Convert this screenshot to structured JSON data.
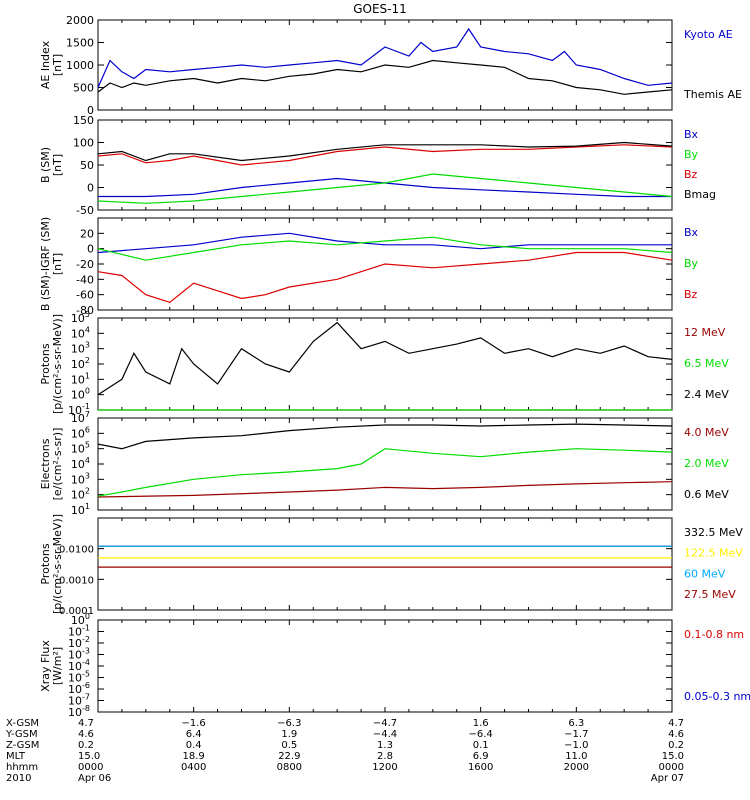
{
  "title": "GOES-11",
  "colors": {
    "black": "#000000",
    "blue": "#0000cc",
    "green": "#00dd00",
    "red": "#dd0000",
    "darkred": "#990000",
    "yellow": "#ffee00",
    "cyan": "#00aaff"
  },
  "chart_data": [
    {
      "type": "line",
      "panel": "ae",
      "ylabel": "AE Index",
      "yunit": "[nT]",
      "scale": "linear",
      "ylim": [
        0,
        2000
      ],
      "yticks": [
        0,
        500,
        1000,
        1500,
        2000
      ],
      "xlim_hours": [
        0,
        24
      ],
      "series": [
        {
          "name": "Kyoto AE",
          "color": "#0000cc",
          "x": [
            0,
            0.5,
            1,
            1.5,
            2,
            3,
            4,
            5,
            6,
            7,
            8,
            9,
            10,
            11,
            12,
            13,
            13.5,
            14,
            15,
            15.5,
            16,
            17,
            18,
            19,
            19.5,
            20,
            21,
            22,
            23,
            24
          ],
          "y": [
            500,
            1100,
            850,
            700,
            900,
            850,
            900,
            950,
            1000,
            950,
            1000,
            1050,
            1100,
            1000,
            1400,
            1200,
            1500,
            1300,
            1400,
            1800,
            1400,
            1300,
            1250,
            1100,
            1300,
            1000,
            900,
            700,
            550,
            600
          ]
        },
        {
          "name": "Themis AE",
          "color": "#000000",
          "x": [
            0,
            0.5,
            1,
            1.5,
            2,
            3,
            4,
            5,
            6,
            7,
            8,
            9,
            10,
            11,
            12,
            13,
            14,
            15,
            16,
            17,
            18,
            19,
            20,
            21,
            22,
            23,
            24
          ],
          "y": [
            400,
            600,
            500,
            600,
            550,
            650,
            700,
            600,
            700,
            650,
            750,
            800,
            900,
            850,
            1000,
            950,
            1100,
            1050,
            1000,
            950,
            700,
            650,
            500,
            450,
            350,
            400,
            450
          ]
        }
      ]
    },
    {
      "type": "line",
      "panel": "b_sm",
      "ylabel": "B (SM)",
      "yunit": "[nT]",
      "scale": "linear",
      "ylim": [
        -50,
        150
      ],
      "yticks": [
        -50,
        0,
        50,
        100,
        150
      ],
      "xlim_hours": [
        0,
        24
      ],
      "series": [
        {
          "name": "Bx",
          "color": "#0000cc",
          "x": [
            0,
            2,
            4,
            6,
            8,
            10,
            12,
            14,
            16,
            18,
            20,
            22,
            24
          ],
          "y": [
            -20,
            -20,
            -15,
            0,
            10,
            20,
            10,
            0,
            -5,
            -10,
            -15,
            -20,
            -20
          ]
        },
        {
          "name": "By",
          "color": "#00dd00",
          "x": [
            0,
            2,
            4,
            6,
            8,
            10,
            12,
            14,
            16,
            18,
            20,
            22,
            24
          ],
          "y": [
            -30,
            -35,
            -30,
            -20,
            -10,
            0,
            10,
            30,
            20,
            10,
            0,
            -10,
            -20
          ]
        },
        {
          "name": "Bz",
          "color": "#dd0000",
          "x": [
            0,
            1,
            2,
            3,
            4,
            6,
            8,
            10,
            12,
            14,
            16,
            18,
            20,
            22,
            24
          ],
          "y": [
            70,
            75,
            55,
            60,
            70,
            50,
            60,
            80,
            90,
            80,
            85,
            85,
            90,
            95,
            90
          ]
        },
        {
          "name": "Bmag",
          "color": "#000000",
          "x": [
            0,
            1,
            2,
            3,
            4,
            6,
            8,
            10,
            12,
            14,
            16,
            18,
            20,
            22,
            24
          ],
          "y": [
            75,
            80,
            60,
            75,
            75,
            60,
            70,
            85,
            95,
            95,
            95,
            90,
            92,
            100,
            92
          ]
        }
      ]
    },
    {
      "type": "line",
      "panel": "b_minus_igrf",
      "ylabel": "B (SM)-IGRF (SM)",
      "yunit": "[nT]",
      "scale": "linear",
      "ylim": [
        -80,
        40
      ],
      "yticks": [
        -80,
        -60,
        -40,
        -20,
        0,
        20
      ],
      "xlim_hours": [
        0,
        24
      ],
      "series": [
        {
          "name": "Bx",
          "color": "#0000cc",
          "x": [
            0,
            2,
            4,
            6,
            8,
            10,
            12,
            14,
            16,
            18,
            20,
            22,
            24
          ],
          "y": [
            -5,
            0,
            5,
            15,
            20,
            10,
            5,
            5,
            0,
            5,
            5,
            5,
            5
          ]
        },
        {
          "name": "By",
          "color": "#00dd00",
          "x": [
            0,
            2,
            4,
            6,
            8,
            10,
            12,
            14,
            16,
            18,
            20,
            22,
            24
          ],
          "y": [
            0,
            -15,
            -5,
            5,
            10,
            5,
            10,
            15,
            5,
            0,
            0,
            0,
            -5
          ]
        },
        {
          "name": "Bz",
          "color": "#dd0000",
          "x": [
            0,
            1,
            2,
            3,
            4,
            5,
            6,
            7,
            8,
            10,
            12,
            14,
            16,
            18,
            20,
            22,
            24
          ],
          "y": [
            -30,
            -35,
            -60,
            -70,
            -45,
            -55,
            -65,
            -60,
            -50,
            -40,
            -20,
            -25,
            -20,
            -15,
            -5,
            -5,
            -15
          ]
        }
      ]
    },
    {
      "type": "line",
      "panel": "protons_low",
      "ylabel": "Protons",
      "yunit": "[p/(cm²-s-sr-MeV)]",
      "scale": "log",
      "ylim": [
        0.1,
        100000
      ],
      "ytick_exponents": [
        -1,
        0,
        1,
        2,
        3,
        4,
        5
      ],
      "xlim_hours": [
        0,
        24
      ],
      "series": [
        {
          "name": "12 MeV",
          "color": "#990000",
          "x": [
            0,
            24
          ],
          "y": [
            0.1,
            0.1
          ]
        },
        {
          "name": "6.5 MeV",
          "color": "#00dd00",
          "x": [
            0,
            24
          ],
          "y": [
            0.1,
            0.1
          ]
        },
        {
          "name": "2.4 MeV",
          "color": "#000000",
          "x": [
            0,
            1,
            1.5,
            2,
            3,
            3.5,
            4,
            5,
            6,
            7,
            8,
            9,
            10,
            11,
            12,
            13,
            14,
            15,
            16,
            17,
            18,
            19,
            20,
            21,
            22,
            23,
            24
          ],
          "y": [
            1,
            10,
            500,
            30,
            5,
            1000,
            100,
            5,
            1000,
            100,
            30,
            3000,
            50000,
            1000,
            3000,
            500,
            1000,
            2000,
            5000,
            500,
            1000,
            300,
            1000,
            500,
            1500,
            300,
            200
          ]
        }
      ]
    },
    {
      "type": "line",
      "panel": "electrons",
      "ylabel": "Electrons",
      "yunit": "[e/(cm²-s-sr)]",
      "scale": "log",
      "ylim": [
        10,
        10000000
      ],
      "ytick_exponents": [
        1,
        2,
        3,
        4,
        5,
        6,
        7
      ],
      "xlim_hours": [
        0,
        24
      ],
      "series": [
        {
          "name": "4.0 MeV",
          "color": "#990000",
          "x": [
            0,
            4,
            8,
            10,
            12,
            14,
            16,
            18,
            20,
            22,
            24
          ],
          "y": [
            70,
            90,
            150,
            200,
            300,
            250,
            300,
            400,
            500,
            600,
            700
          ]
        },
        {
          "name": "2.0 MeV",
          "color": "#00dd00",
          "x": [
            0,
            1,
            2,
            4,
            6,
            8,
            10,
            11,
            12,
            14,
            16,
            18,
            20,
            22,
            24
          ],
          "y": [
            80,
            150,
            300,
            1000,
            2000,
            3000,
            5000,
            10000,
            100000,
            50000,
            30000,
            60000,
            100000,
            80000,
            60000
          ]
        },
        {
          "name": "0.6 MeV",
          "color": "#000000",
          "x": [
            0,
            1,
            2,
            4,
            6,
            8,
            10,
            12,
            14,
            16,
            18,
            20,
            22,
            24
          ],
          "y": [
            200000,
            100000,
            300000,
            500000,
            700000,
            1500000,
            2500000,
            3500000,
            3500000,
            3000000,
            3500000,
            4000000,
            3500000,
            3000000
          ]
        }
      ]
    },
    {
      "type": "line",
      "panel": "protons_high",
      "ylabel": "Protons",
      "yunit": "[p/(cm²-s-sr-MeV)]",
      "scale": "log",
      "ylim": [
        0.0001,
        0.1
      ],
      "yticks": [
        "0.0001",
        "0.0010",
        "0.0100"
      ],
      "ytick_values": [
        0.0001,
        0.001,
        0.01
      ],
      "xlim_hours": [
        0,
        24
      ],
      "series": [
        {
          "name": "332.5 MeV",
          "color": "#000000",
          "x": [
            0,
            24
          ],
          "y": [
            0.012,
            0.012
          ]
        },
        {
          "name": "122.5 MeV",
          "color": "#ffee00",
          "x": [
            0,
            24
          ],
          "y": [
            0.005,
            0.005
          ]
        },
        {
          "name": "60 MeV",
          "color": "#00aaff",
          "x": [
            0,
            24
          ],
          "y": [
            0.012,
            0.012
          ]
        },
        {
          "name": "27.5 MeV",
          "color": "#990000",
          "x": [
            0,
            24
          ],
          "y": [
            0.0025,
            0.0025
          ]
        }
      ]
    },
    {
      "type": "line",
      "panel": "xray",
      "ylabel": "Xray Flux",
      "yunit": "[W/m²]",
      "scale": "log",
      "ylim": [
        1e-08,
        1
      ],
      "ytick_exponents": [
        -8,
        -7,
        -6,
        -5,
        -4,
        -3,
        -2,
        -1,
        0
      ],
      "xlim_hours": [
        0,
        24
      ],
      "series": [
        {
          "name": "0.1-0.8 nm",
          "color": "#dd0000",
          "x": [],
          "y": []
        },
        {
          "name": "0.05-0.3 nm",
          "color": "#0000cc",
          "x": [],
          "y": []
        }
      ]
    }
  ],
  "orbit_table": {
    "row_labels": [
      "X-GSM",
      "Y-GSM",
      "Z-GSM",
      "MLT",
      "hhmm",
      "2010"
    ],
    "columns": [
      [
        "4.7",
        "4.6",
        "0.2",
        "15.0",
        "0000",
        "Apr 06"
      ],
      [
        "−1.6",
        "6.4",
        "0.4",
        "18.9",
        "0400",
        ""
      ],
      [
        "−6.3",
        "1.9",
        "0.5",
        "22.9",
        "0800",
        ""
      ],
      [
        "−4.7",
        "−4.4",
        "1.3",
        "2.8",
        "1200",
        ""
      ],
      [
        "1.6",
        "−6.4",
        "0.1",
        "6.9",
        "1600",
        ""
      ],
      [
        "6.3",
        "−1.7",
        "−1.0",
        "11.0",
        "2000",
        ""
      ],
      [
        "4.7",
        "4.6",
        "0.2",
        "15.0",
        "0000",
        "Apr 07"
      ]
    ]
  }
}
